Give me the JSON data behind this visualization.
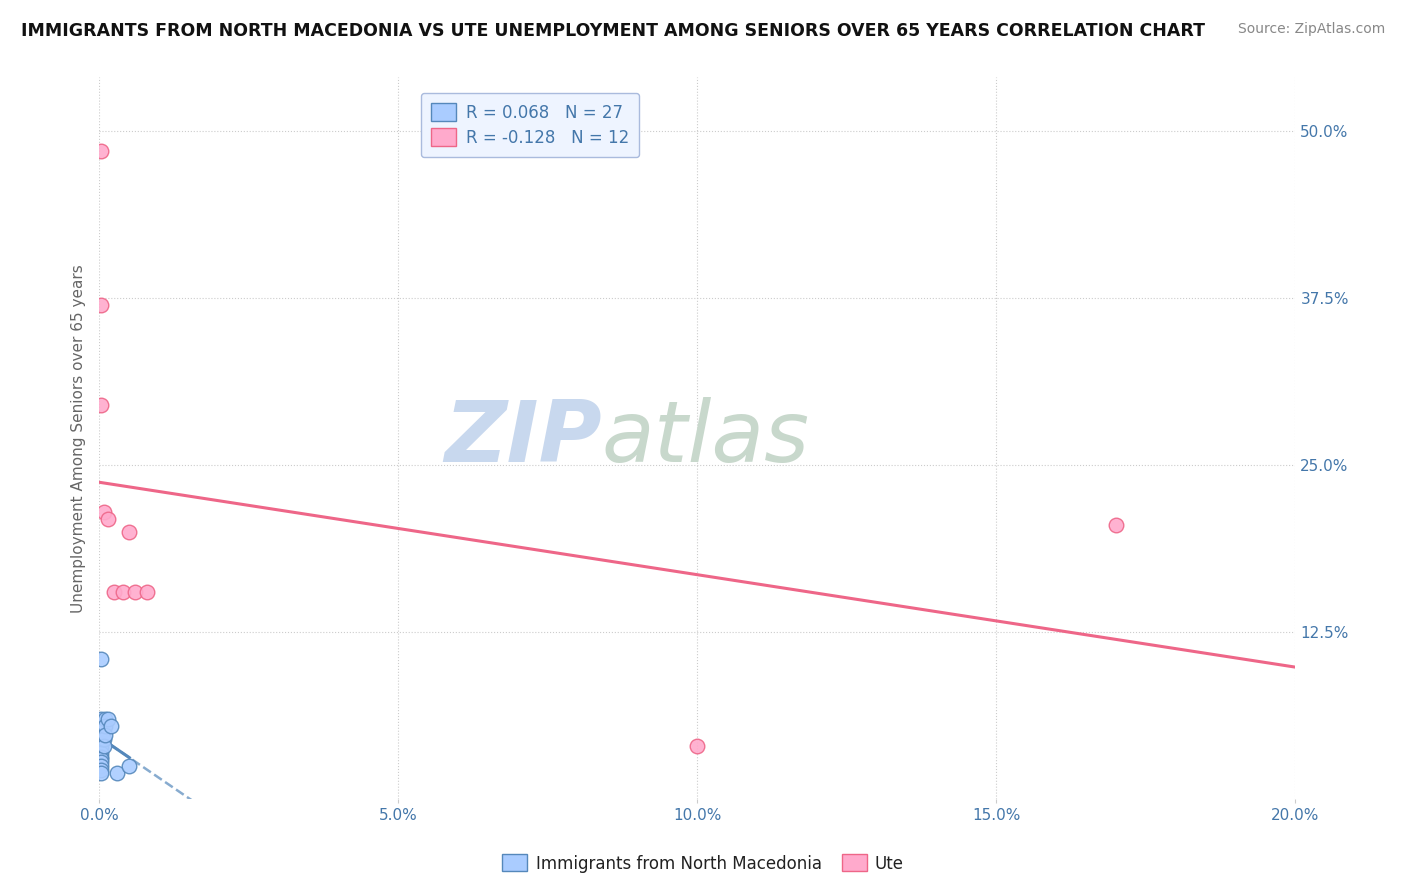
{
  "title": "IMMIGRANTS FROM NORTH MACEDONIA VS UTE UNEMPLOYMENT AMONG SENIORS OVER 65 YEARS CORRELATION CHART",
  "source": "Source: ZipAtlas.com",
  "ylabel": "Unemployment Among Seniors over 65 years",
  "yticks": [
    "12.5%",
    "25.0%",
    "37.5%",
    "50.0%"
  ],
  "ytick_vals": [
    0.125,
    0.25,
    0.375,
    0.5
  ],
  "legend_blue_r": "R = 0.068",
  "legend_blue_n": "N = 27",
  "legend_pink_r": "R = -0.128",
  "legend_pink_n": "N = 12",
  "blue_color": "#aaccff",
  "pink_color": "#ffaacc",
  "blue_line_color": "#5588bb",
  "pink_line_color": "#ee6688",
  "blue_scatter": [
    [
      0.0003,
      0.105
    ],
    [
      0.0003,
      0.06
    ],
    [
      0.0003,
      0.05
    ],
    [
      0.0003,
      0.045
    ],
    [
      0.0003,
      0.042
    ],
    [
      0.0003,
      0.04
    ],
    [
      0.0003,
      0.038
    ],
    [
      0.0003,
      0.035
    ],
    [
      0.0003,
      0.032
    ],
    [
      0.0003,
      0.03
    ],
    [
      0.0003,
      0.028
    ],
    [
      0.0003,
      0.025
    ],
    [
      0.0003,
      0.022
    ],
    [
      0.0003,
      0.02
    ],
    [
      0.0005,
      0.058
    ],
    [
      0.0005,
      0.05
    ],
    [
      0.0005,
      0.045
    ],
    [
      0.0008,
      0.055
    ],
    [
      0.0008,
      0.045
    ],
    [
      0.0008,
      0.04
    ],
    [
      0.001,
      0.06
    ],
    [
      0.001,
      0.055
    ],
    [
      0.001,
      0.048
    ],
    [
      0.0015,
      0.06
    ],
    [
      0.002,
      0.055
    ],
    [
      0.003,
      0.02
    ],
    [
      0.005,
      0.025
    ]
  ],
  "pink_scatter": [
    [
      0.0003,
      0.485
    ],
    [
      0.0003,
      0.37
    ],
    [
      0.0003,
      0.295
    ],
    [
      0.0008,
      0.215
    ],
    [
      0.0015,
      0.21
    ],
    [
      0.0025,
      0.155
    ],
    [
      0.004,
      0.155
    ],
    [
      0.005,
      0.2
    ],
    [
      0.006,
      0.155
    ],
    [
      0.008,
      0.155
    ],
    [
      0.17,
      0.205
    ],
    [
      0.1,
      0.04
    ]
  ],
  "xlim": [
    0.0,
    0.2
  ],
  "ylim": [
    0.0,
    0.54
  ],
  "watermark_zip": "ZIP",
  "watermark_atlas": "atlas",
  "watermark_color_zip": "#c8d8ee",
  "watermark_color_atlas": "#c8d8cc",
  "bg_color": "#ffffff",
  "legend_box_color": "#eef4ff",
  "legend_box_edge": "#aabbdd",
  "grid_color": "#cccccc",
  "xtick_color": "#4477aa",
  "ytick_color": "#4477aa"
}
